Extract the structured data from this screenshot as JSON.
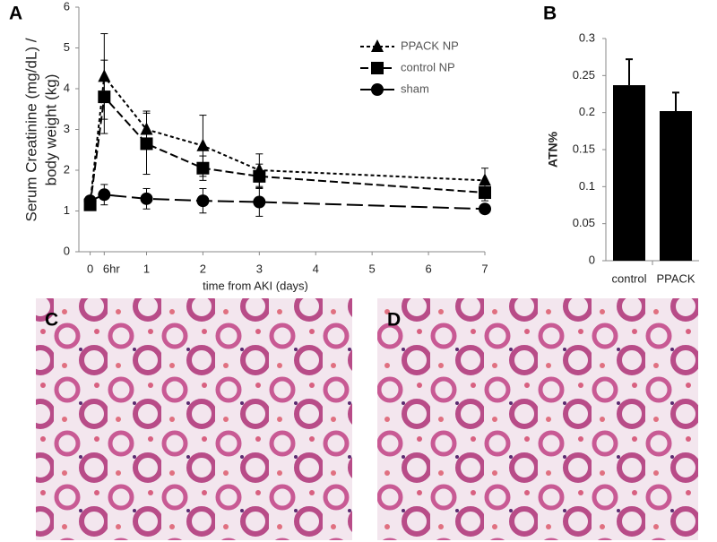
{
  "chart_data": [
    {
      "type": "line",
      "panel_label": "A",
      "ylabel": [
        "Serum Creatinine (mg/dL) /",
        "body weight (kg)"
      ],
      "xlabel": "time from AKI (days)",
      "xlim": [
        -0.2,
        7
      ],
      "xticks": [
        0,
        {
          "value": 0.25,
          "label": "6hr"
        },
        1,
        2,
        3,
        4,
        5,
        6,
        7
      ],
      "ylim": [
        0,
        6
      ],
      "yticks": [
        0,
        1,
        2,
        3,
        4,
        5,
        6
      ],
      "x": [
        0,
        0.25,
        1,
        2,
        3,
        7
      ],
      "legend": "upper right",
      "series": [
        {
          "name": "PPACK NP",
          "color": "#000000",
          "marker": "triangle",
          "dash": "4,3",
          "values": [
            1.2,
            4.3,
            3.0,
            2.6,
            2.0,
            1.75
          ],
          "errors": [
            0.1,
            1.05,
            0.45,
            0.75,
            0.4,
            0.3
          ]
        },
        {
          "name": "control NP",
          "color": "#000000",
          "marker": "square",
          "dash": "9,4",
          "values": [
            1.15,
            3.8,
            2.65,
            2.05,
            1.85,
            1.45
          ],
          "errors": [
            0.1,
            0.9,
            0.75,
            0.3,
            0.3,
            0.2
          ]
        },
        {
          "name": "sham",
          "color": "#000000",
          "marker": "circle",
          "dash": "18,6",
          "values": [
            1.25,
            1.4,
            1.3,
            1.25,
            1.22,
            1.05
          ],
          "errors": [
            0.1,
            0.25,
            0.25,
            0.3,
            0.35,
            0.05
          ]
        }
      ]
    },
    {
      "type": "bar",
      "panel_label": "B",
      "ylabel": "ATN%",
      "categories": [
        "control",
        "PPACK"
      ],
      "values": [
        0.237,
        0.202
      ],
      "errors": [
        0.035,
        0.025
      ],
      "color": "#000000",
      "ylim": [
        0,
        0.3
      ],
      "yticks": [
        0,
        0.05,
        0.1,
        0.15,
        0.2,
        0.25,
        0.3
      ]
    }
  ],
  "images": [
    {
      "label": "C"
    },
    {
      "label": "D"
    }
  ]
}
